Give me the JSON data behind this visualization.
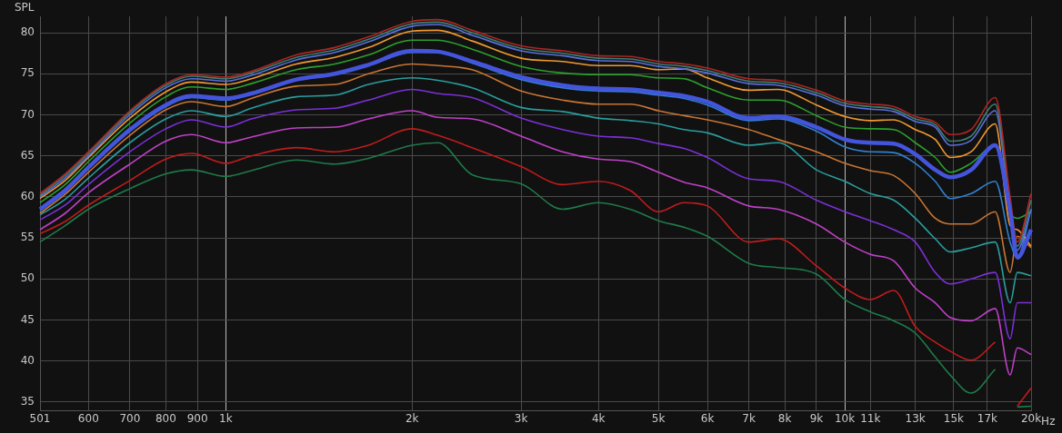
{
  "chart_data": {
    "type": "line",
    "ylabel": "SPL",
    "log": "x",
    "grid": true,
    "legend": false,
    "marker": "none",
    "line_style": "solid",
    "xlim": [
      501,
      20000
    ],
    "ylim": [
      34,
      82
    ],
    "xticks": [
      501,
      600,
      700,
      800,
      900,
      {
        "value": 1000,
        "label": "1k"
      },
      {
        "value": 2000,
        "label": "2k"
      },
      {
        "value": 3000,
        "label": "3k"
      },
      {
        "value": 4000,
        "label": "4k"
      },
      {
        "value": 5000,
        "label": "5k"
      },
      {
        "value": 6000,
        "label": "6k"
      },
      {
        "value": 7000,
        "label": "7k"
      },
      {
        "value": 8000,
        "label": "8k"
      },
      {
        "value": 9000,
        "label": "9k"
      },
      {
        "value": 10000,
        "label": "10k"
      },
      {
        "value": 11000,
        "label": "11k"
      },
      {
        "value": 13000,
        "label": "13k"
      },
      {
        "value": 15000,
        "label": "15k"
      },
      {
        "value": 17000,
        "label": "17k"
      },
      {
        "value": 20000,
        "label": "20k"
      }
    ],
    "xlabel": "Hz",
    "yticks": [
      35,
      40,
      45,
      50,
      55,
      60,
      65,
      70,
      75,
      80
    ],
    "x": [
      501,
      550,
      600,
      700,
      800,
      880,
      1000,
      1100,
      1300,
      1500,
      1700,
      2000,
      2200,
      2500,
      3000,
      3500,
      4000,
      4500,
      5000,
      5500,
      6000,
      7000,
      7800,
      9000,
      10000,
      11000,
      12000,
      13000,
      14000,
      14800,
      16000,
      17500,
      18500,
      19000,
      20000
    ],
    "series": [
      {
        "color": "#b02424",
        "values": [
          60.4,
          62.8,
          65.5,
          70.5,
          73.8,
          74.9,
          74.6,
          75.3,
          77.3,
          78.2,
          79.5,
          81.4,
          81.6,
          80.3,
          78.4,
          77.8,
          77.2,
          77.1,
          76.5,
          76.2,
          75.7,
          74.4,
          74.2,
          73,
          71.7,
          71.3,
          71,
          69.8,
          69.1,
          67.6,
          68.2,
          72.1,
          60,
          54.5,
          60.4
        ]
      },
      {
        "color": "#3f7f6f",
        "values": [
          60.2,
          62.6,
          65.3,
          70.3,
          73.6,
          74.7,
          74.4,
          75.1,
          77,
          77.9,
          79.2,
          81.1,
          81.3,
          80,
          78.1,
          77.5,
          76.9,
          76.8,
          76.2,
          75.9,
          75.4,
          74.1,
          73.9,
          72.7,
          71.4,
          71,
          70.7,
          69.5,
          68.8,
          66.8,
          67.4,
          71.3,
          59,
          54,
          59.6
        ]
      },
      {
        "color": "#5a6fe0",
        "values": [
          60,
          62.3,
          65,
          70,
          73.3,
          74.4,
          74.1,
          74.8,
          76.7,
          77.6,
          78.9,
          80.8,
          81,
          79.7,
          77.8,
          77.2,
          76.6,
          76.5,
          75.9,
          75.6,
          75.1,
          73.8,
          73.6,
          72.4,
          71.1,
          70.7,
          70.4,
          69.2,
          68.5,
          66.3,
          66.9,
          70.5,
          58,
          53.5,
          58.5
        ]
      },
      {
        "color": "#f09a30",
        "values": [
          59.8,
          62,
          64.8,
          69.6,
          72.8,
          74,
          73.7,
          74.4,
          76.2,
          77,
          78.2,
          80.2,
          80.3,
          79,
          76.9,
          76.5,
          76,
          76,
          75.5,
          75.6,
          74.5,
          73,
          73.1,
          71.2,
          69.8,
          69.3,
          69.4,
          68.2,
          67,
          64.8,
          65.5,
          68.9,
          56.5,
          56,
          54
        ]
      },
      {
        "color": "#2ca02c",
        "values": [
          59.3,
          61.5,
          64.3,
          69,
          72.2,
          73.4,
          73.1,
          73.8,
          75.5,
          76.2,
          77.3,
          79.1,
          79.1,
          78,
          75.9,
          75.1,
          74.9,
          74.9,
          74.5,
          74.4,
          73.3,
          71.8,
          71.8,
          69.9,
          68.5,
          68.3,
          68.2,
          66.6,
          64.8,
          63,
          64.1,
          66.3,
          58.2,
          57.4,
          58.2
        ]
      },
      {
        "color": "#3080d0",
        "values": [
          58.3,
          60.6,
          63.5,
          68,
          71,
          72.1,
          71.8,
          72.5,
          74.2,
          75,
          76,
          77.6,
          77.6,
          76.3,
          74.3,
          73.3,
          72.9,
          72.8,
          72.4,
          72,
          71.2,
          69.3,
          69.5,
          68,
          66.1,
          65.5,
          65.4,
          64.1,
          61.9,
          59.8,
          60.4,
          61.9,
          54.5,
          52.6,
          58.5
        ]
      },
      {
        "color": "#4455dd",
        "values": [
          58.5,
          60.8,
          63.6,
          68.2,
          71.2,
          72.3,
          72,
          72.6,
          74.3,
          75,
          76.1,
          77.8,
          77.7,
          76.5,
          74.6,
          73.6,
          73.2,
          73.1,
          72.7,
          72.3,
          71.6,
          69.6,
          69.8,
          68.5,
          67,
          66.6,
          66.5,
          65.2,
          63.3,
          62.4,
          63.3,
          66.3,
          58.2,
          52.6,
          56
        ]
      },
      {
        "color": "#c87533",
        "values": [
          58,
          60.3,
          63,
          67.5,
          70.6,
          71.6,
          71,
          72,
          73.5,
          73.7,
          75,
          76.2,
          76,
          75.5,
          72.9,
          71.8,
          71.3,
          71.3,
          70.5,
          69.9,
          69.4,
          68.2,
          67,
          65.5,
          64.1,
          63.2,
          62.6,
          60.4,
          57.4,
          56.7,
          56.7,
          58.2,
          50.8,
          55.2,
          53.8
        ]
      },
      {
        "color": "#2a9d9d",
        "values": [
          57.8,
          59.7,
          62.3,
          66.6,
          69.5,
          70.5,
          69.8,
          70.8,
          72.2,
          72.4,
          73.7,
          74.5,
          74.2,
          73.3,
          70.9,
          70.4,
          69.6,
          69.3,
          68.9,
          68.2,
          67.8,
          66.3,
          66.6,
          63.3,
          61.9,
          60.4,
          59.6,
          57.4,
          54.9,
          53.3,
          53.8,
          54.5,
          47.1,
          50.8,
          50.4
        ]
      },
      {
        "color": "#7b30d8",
        "values": [
          57.2,
          59,
          61.5,
          65.5,
          68.3,
          69.4,
          68.5,
          69.5,
          70.6,
          70.8,
          71.8,
          73.1,
          72.6,
          72.1,
          69.6,
          68.2,
          67.4,
          67.2,
          66.5,
          65.9,
          64.8,
          62.2,
          61.9,
          59.6,
          58.2,
          57.1,
          56,
          54.5,
          50.8,
          49.4,
          50,
          50.8,
          42.7,
          47.1,
          47.1
        ]
      },
      {
        "color": "#c040c8",
        "values": [
          56,
          58,
          60.5,
          64,
          66.8,
          67.6,
          66.6,
          67.3,
          68.4,
          68.5,
          69.5,
          70.5,
          69.7,
          69.5,
          67.4,
          65.5,
          64.6,
          64.3,
          63,
          61.8,
          61.1,
          58.9,
          58.5,
          56.7,
          54.5,
          53,
          52.2,
          48.9,
          47.1,
          45.3,
          44.9,
          46.4,
          38.3,
          41.6,
          40.8
        ]
      },
      {
        "color": "#c01c1c",
        "values": [
          55.5,
          57,
          59,
          62,
          64.6,
          65.3,
          64.1,
          65,
          66,
          65.5,
          66.3,
          68.3,
          67.5,
          66,
          63.7,
          61.5,
          61.9,
          60.8,
          58.2,
          59.3,
          58.9,
          54.5,
          54.9,
          51.6,
          48.9,
          47.5,
          48.6,
          44.2,
          42.3,
          41.2,
          40.1,
          42.3,
          null,
          34.5,
          36.7
        ]
      },
      {
        "color": "#1f7a4a",
        "values": [
          54.5,
          56.5,
          58.5,
          61,
          62.8,
          63.3,
          62.5,
          63.2,
          64.5,
          64,
          64.7,
          66.3,
          66.6,
          62.7,
          61.6,
          58.5,
          59.3,
          58.5,
          57.1,
          56.3,
          55.2,
          51.9,
          51.4,
          50.6,
          47.5,
          46,
          44.9,
          43.4,
          40.5,
          38.3,
          36.1,
          39,
          null,
          34.4,
          34.5
        ]
      }
    ]
  }
}
